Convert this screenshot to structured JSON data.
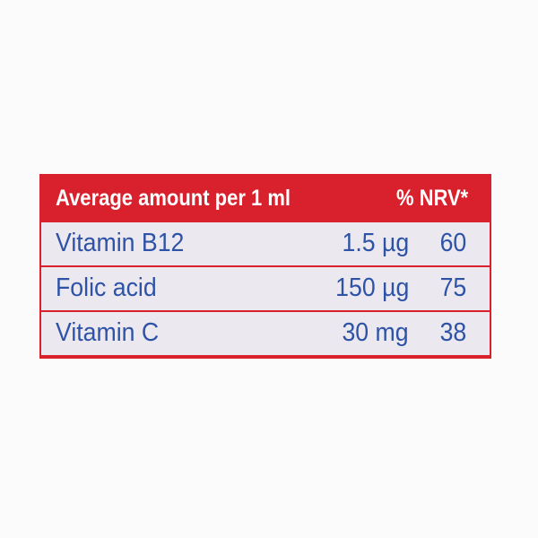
{
  "table": {
    "header": [
      "Average amount per 1 ml",
      "% NRV*"
    ],
    "rows": [
      [
        "Vitamin B12",
        "1.5 µg",
        "60"
      ],
      [
        "Folic acid",
        "150 µg",
        "75"
      ],
      [
        "Vitamin C",
        "30 mg",
        "38"
      ]
    ]
  }
}
